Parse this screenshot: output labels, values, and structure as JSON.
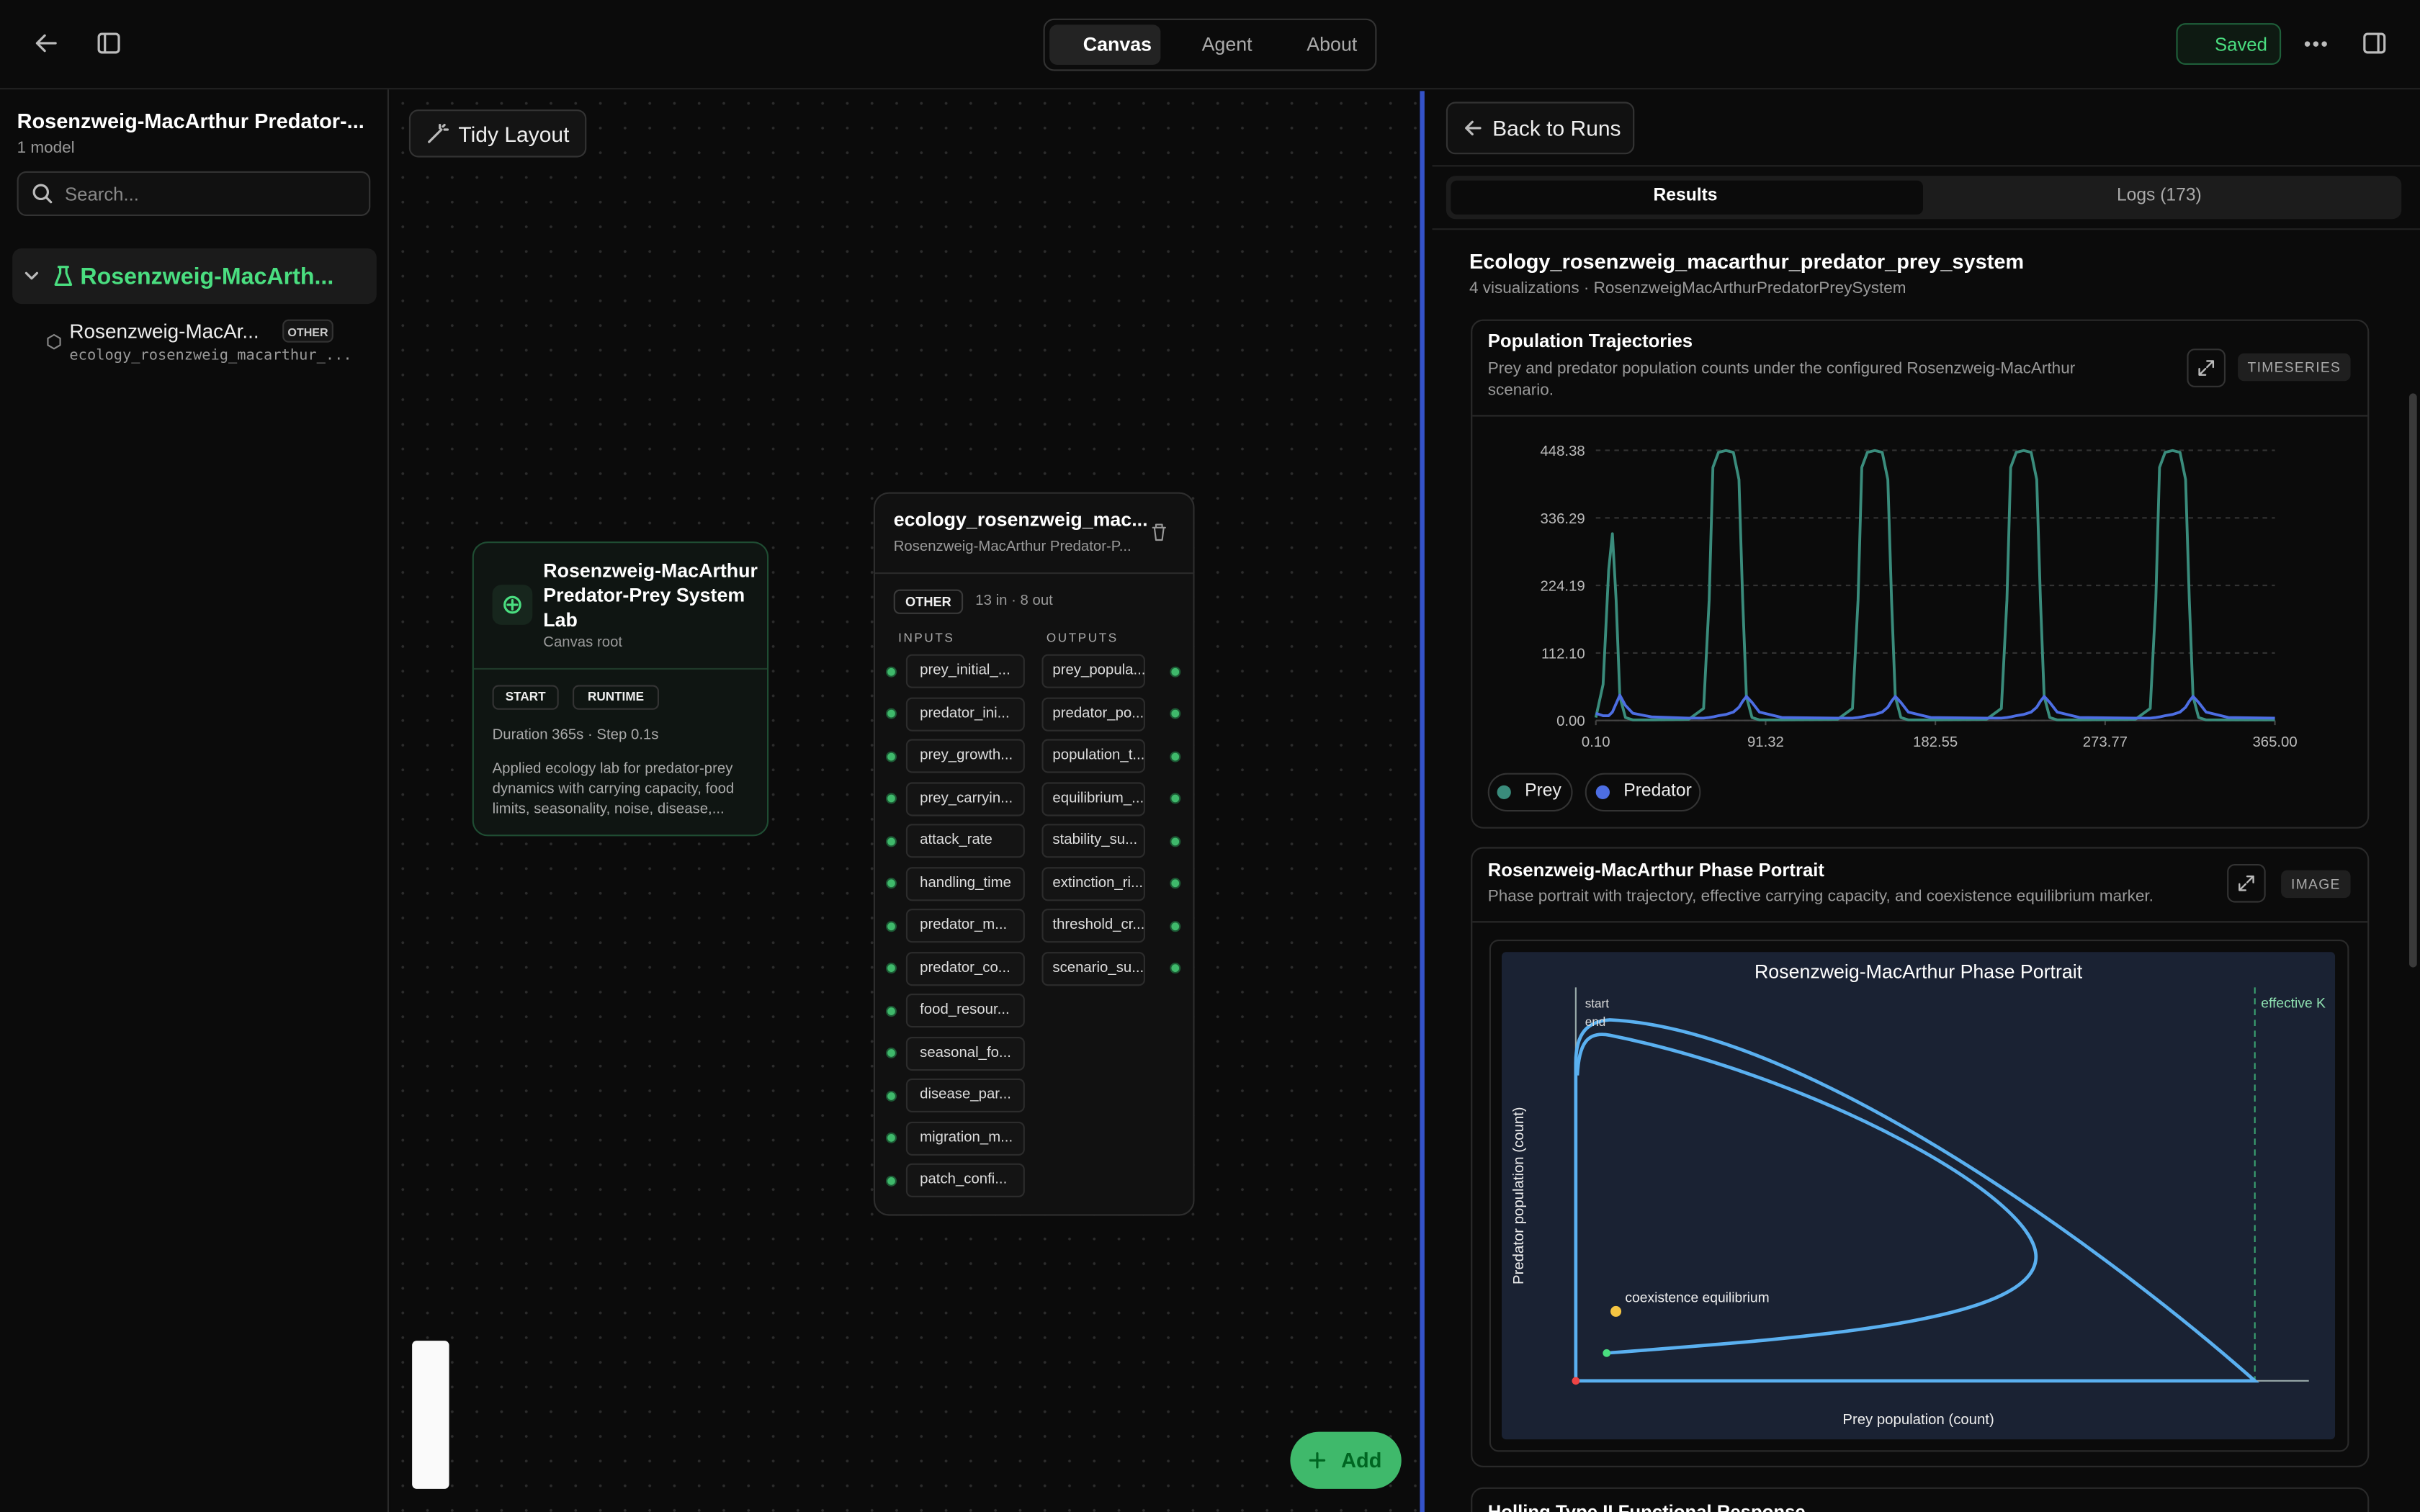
{
  "topbar": {
    "tabs": [
      "Canvas",
      "Agent",
      "About"
    ],
    "status": "Saved"
  },
  "sidebar": {
    "title": "Rosenzweig-MacArthur Predator-...",
    "subtitle": "1 model",
    "search": "Search...",
    "group": "Rosenzweig-MacArth...",
    "item": {
      "name": "Rosenzweig-MacAr...",
      "badge": "OTHER",
      "id": "ecology_rosenzweig_macarthur_..."
    }
  },
  "canvas": {
    "toolbar": "Tidy Layout",
    "add": "Add",
    "root_node": {
      "title": [
        "Rosenzweig-MacArthur",
        "Predator-Prey System",
        "Lab"
      ],
      "subtitle": "Canvas root",
      "badges": [
        "START",
        "RUNTIME"
      ],
      "meta": "Duration 365s · Step 0.1s",
      "description": [
        "Applied ecology lab for predator-prey",
        "dynamics with carrying capacity, food",
        "limits, seasonality, noise, disease,..."
      ]
    },
    "model_node": {
      "title": "ecology_rosenzweig_mac...",
      "subtitle": "Rosenzweig-MacArthur Predator-P...",
      "badge": "OTHER",
      "ports": "13 in · 8 out",
      "inputs_label": "INPUTS",
      "outputs_label": "OUTPUTS",
      "inputs": [
        "prey_initial_...",
        "predator_ini...",
        "prey_growth...",
        "prey_carryin...",
        "attack_rate",
        "handling_time",
        "predator_m...",
        "predator_co...",
        "food_resour...",
        "seasonal_fo...",
        "disease_par...",
        "migration_m...",
        "patch_confi..."
      ],
      "outputs": [
        "prey_popula...",
        "predator_po...",
        "population_t...",
        "equilibrium_...",
        "stability_su...",
        "extinction_ri...",
        "threshold_cr...",
        "scenario_su..."
      ]
    }
  },
  "panel": {
    "back": "Back to Runs",
    "tabs": [
      "Results",
      "Logs (173)"
    ],
    "heading": "Ecology_rosenzweig_macarthur_predator_prey_system",
    "subheading": "4 visualizations · RosenzweigMacArthurPredatorPreySystem",
    "cards": [
      {
        "title": "Population Trajectories",
        "description": [
          "Prey and predator population counts under the configured Rosenzweig-MacArthur",
          "scenario."
        ],
        "badge": "TIMESERIES"
      },
      {
        "title": "Rosenzweig-MacArthur Phase Portrait",
        "description": [
          "Phase portrait with trajectory, effective carrying capacity, and coexistence equilibrium marker."
        ],
        "badge": "IMAGE",
        "image": {
          "title": "Rosenzweig-MacArthur Phase Portrait",
          "start": "start",
          "end": "end",
          "k_label": "effective K",
          "equilibrium": "coexistence equilibrium",
          "xlabel": "Prey population (count)",
          "ylabel": "Predator population (count)"
        }
      },
      {
        "title": "Holling Type II Functional Response"
      }
    ]
  },
  "chart_data": {
    "type": "line",
    "x": [
      0.1,
      4,
      7,
      9,
      11,
      13,
      16,
      20,
      30,
      50,
      58,
      61,
      63,
      66,
      70,
      74,
      77,
      79,
      81,
      84,
      88,
      100,
      130,
      138,
      141,
      143,
      146,
      150,
      154,
      157,
      159,
      161,
      164,
      168,
      180,
      210,
      218,
      221,
      223,
      226,
      230,
      234,
      237,
      239,
      241,
      244,
      248,
      260,
      290,
      298,
      301,
      303,
      306,
      310,
      314,
      317,
      319,
      321,
      324,
      328,
      340,
      365
    ],
    "series": [
      {
        "name": "Prey",
        "color": "#3a8c7c",
        "values": [
          5,
          60,
          250,
          310,
          200,
          40,
          5,
          1,
          1,
          2,
          20,
          200,
          420,
          445,
          448,
          445,
          400,
          200,
          40,
          5,
          1,
          1,
          2,
          20,
          200,
          420,
          445,
          448,
          445,
          400,
          200,
          40,
          5,
          1,
          1,
          2,
          20,
          200,
          420,
          445,
          448,
          445,
          400,
          200,
          40,
          5,
          1,
          1,
          2,
          20,
          200,
          420,
          445,
          448,
          445,
          400,
          200,
          40,
          5,
          1,
          1,
          1
        ]
      },
      {
        "name": "Predator",
        "color": "#4d6ee3",
        "values": [
          12,
          8,
          8,
          14,
          28,
          42,
          25,
          12,
          6,
          4,
          4,
          5,
          6,
          8,
          10,
          14,
          22,
          32,
          40,
          30,
          14,
          5,
          4,
          4,
          5,
          6,
          8,
          10,
          14,
          22,
          32,
          40,
          30,
          14,
          5,
          4,
          4,
          5,
          6,
          8,
          10,
          14,
          22,
          32,
          40,
          30,
          14,
          5,
          4,
          4,
          5,
          6,
          8,
          10,
          14,
          22,
          32,
          40,
          30,
          14,
          5,
          4
        ]
      }
    ],
    "xlim": [
      0.1,
      365
    ],
    "ylim": [
      0,
      466
    ],
    "xticks": [
      {
        "value": 0.1,
        "label": "0.10"
      },
      91.32,
      182.55,
      273.77,
      {
        "value": 365,
        "label": "365.00"
      }
    ],
    "yticks": [
      {
        "value": 0,
        "label": "0.00"
      },
      {
        "value": 112.1,
        "label": "112.10"
      },
      224.19,
      336.29,
      448.38
    ],
    "grid": true
  }
}
